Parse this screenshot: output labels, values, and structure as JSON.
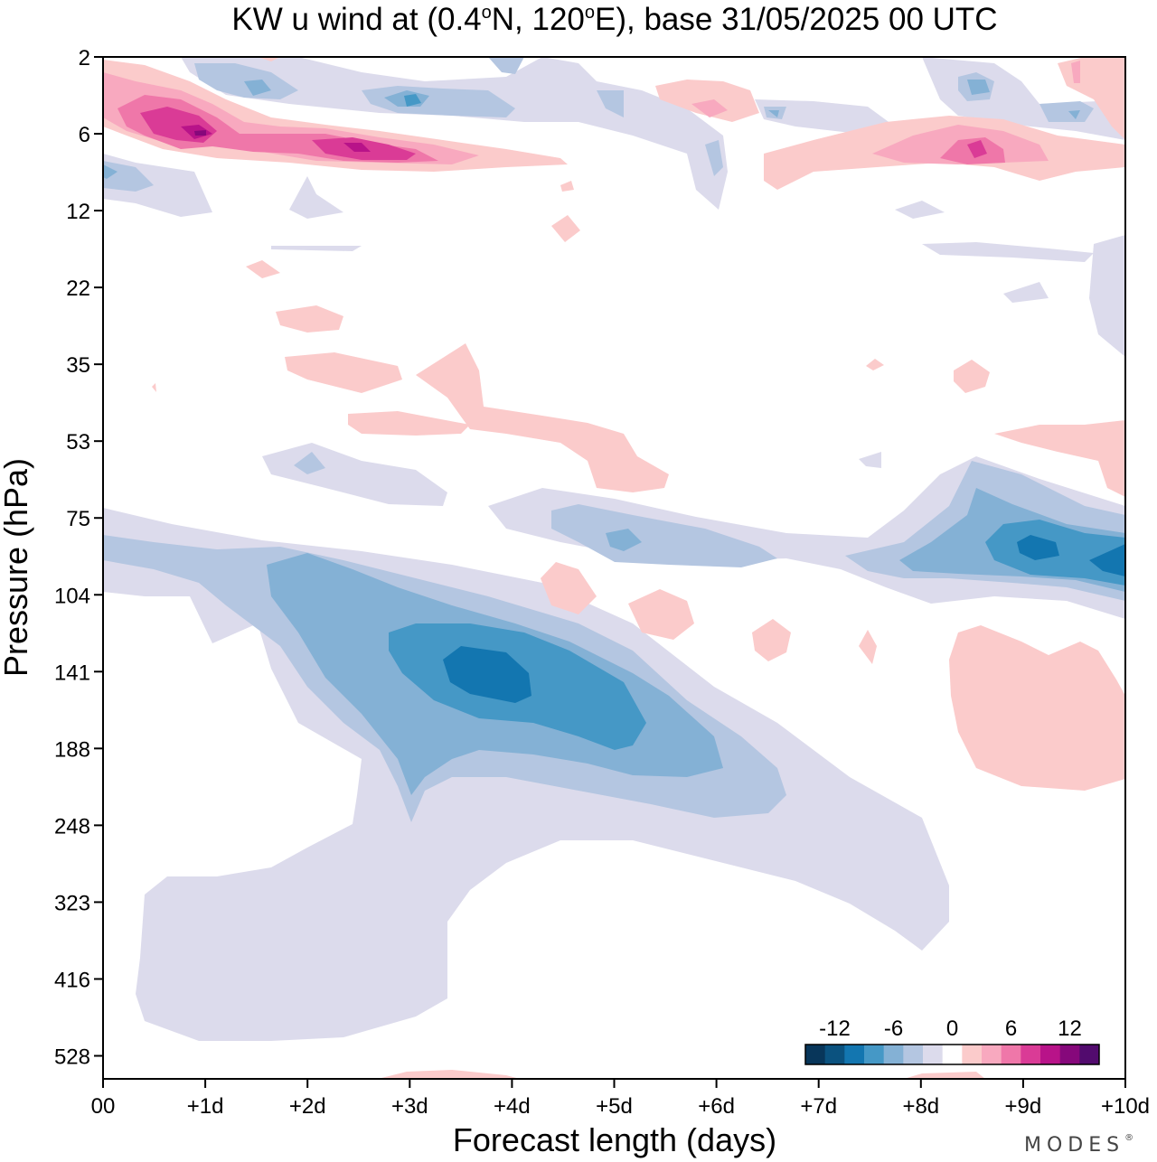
{
  "chart_data": {
    "type": "heatmap",
    "subtype": "filled-contour",
    "title_parts": [
      "KW u wind at (0.4",
      "o",
      "N, 120",
      "o",
      "E),  base 31/05/2025  00 UTC"
    ],
    "xlabel": "Forecast length (days)",
    "ylabel": "Pressure (hPa)",
    "x_unit": "days",
    "xlim": [
      0,
      10
    ],
    "x_ticks": [
      0,
      1,
      2,
      3,
      4,
      5,
      6,
      7,
      8,
      9,
      10
    ],
    "x_tick_labels": [
      "00",
      "+1d",
      "+2d",
      "+3d",
      "+4d",
      "+5d",
      "+6d",
      "+7d",
      "+8d",
      "+9d",
      "+10d"
    ],
    "y_ticks": [
      2,
      6,
      12,
      22,
      35,
      53,
      75,
      104,
      141,
      188,
      248,
      323,
      416,
      528
    ],
    "y_tick_labels": [
      "2",
      "6",
      "12",
      "22",
      "35",
      "53",
      "75",
      "104",
      "141",
      "188",
      "248",
      "323",
      "416",
      "528"
    ],
    "y_axis_direction": "pressure increasing downward, ticks evenly spaced",
    "colorbar": {
      "labels": [
        "-12",
        "-6",
        "0",
        "6",
        "12"
      ],
      "label_values": [
        -12,
        -6,
        0,
        6,
        12
      ],
      "levels": [
        -14,
        -12,
        -10,
        -8,
        -6,
        -4,
        -2,
        2,
        4,
        6,
        8,
        10,
        12,
        14
      ],
      "colors": [
        "#08365a",
        "#0b527f",
        "#1376b0",
        "#4598c6",
        "#84b1d5",
        "#b4c6e1",
        "#dcdbec",
        "#ffffff",
        "#fbcbcb",
        "#f8a9bf",
        "#ef77a9",
        "#da3b96",
        "#b81389",
        "#86087b",
        "#520b6e"
      ],
      "placement": "bottom-right inside plot"
    },
    "features": [
      {
        "name": "upper positive band",
        "x_range": [
          0,
          4.5
        ],
        "pressure_hPa": 6,
        "max_value": 12,
        "sign": "positive"
      },
      {
        "name": "upper positive band late",
        "x_range": [
          6.5,
          10
        ],
        "pressure_hPa": 7,
        "max_value": 8,
        "sign": "positive"
      },
      {
        "name": "main negative jet",
        "x_range": [
          0,
          7
        ],
        "pressure_hPa": [
          90,
          250
        ],
        "min_value": -12,
        "center_day": 3.8,
        "center_pressure_hPa": 141,
        "sign": "negative"
      },
      {
        "name": "negative patch late",
        "x_range": [
          7.5,
          10
        ],
        "pressure_hPa": [
          75,
          104
        ],
        "min_value": -10,
        "sign": "negative"
      },
      {
        "name": "lower positive patch",
        "x_range": [
          8.3,
          10
        ],
        "pressure_hPa": [
          130,
          230
        ],
        "max_value": 4,
        "sign": "positive"
      }
    ]
  },
  "brand": "MODES",
  "brand_mark": "®"
}
